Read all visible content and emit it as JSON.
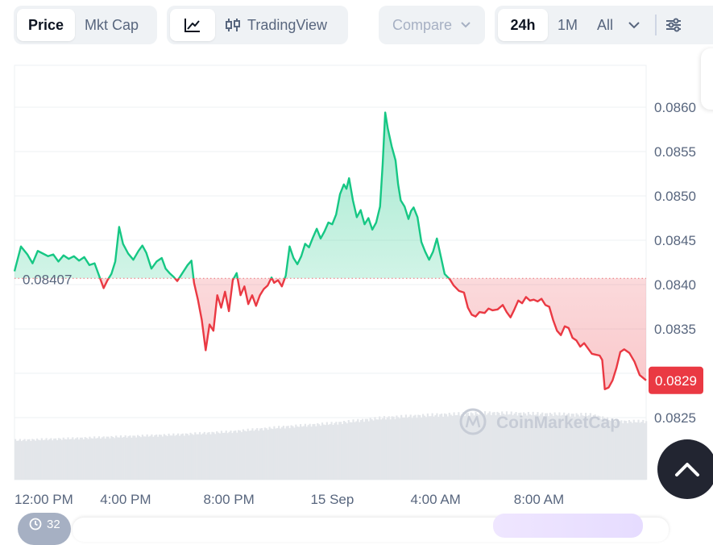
{
  "toolbar": {
    "price_label": "Price",
    "mktcap_label": "Mkt Cap",
    "tradingview_label": "TradingView",
    "compare_label": "Compare",
    "range_24h": "24h",
    "range_1m": "1M",
    "range_all": "All"
  },
  "bottom": {
    "counter_label": "32"
  },
  "colors": {
    "up": "#16c784",
    "down": "#ea3943",
    "up_fill": "#16c784",
    "down_fill": "#ea3943",
    "grid": "#eef0f3",
    "text": "#58667e"
  },
  "chart_data": {
    "type": "area",
    "baseline": 0.08407,
    "baseline_label": "0.08407",
    "current_label": "0.0829",
    "ylim": [
      0.082,
      0.0865
    ],
    "yticks": [
      0.0825,
      0.083,
      0.0835,
      0.084,
      0.0845,
      0.085,
      0.0855,
      0.086
    ],
    "ytick_labels": [
      "0.0825",
      "0.0830",
      "0.0835",
      "0.0840",
      "0.0845",
      "0.0850",
      "0.0855",
      "0.0860"
    ],
    "y_axis_unit": "USD",
    "xlim": [
      -0.3,
      24.15
    ],
    "xticks": [
      0,
      4,
      8,
      12,
      16,
      20
    ],
    "xtick_labels": [
      "12:00 PM",
      "4:00 PM",
      "8:00 PM",
      "15 Sep",
      "4:00 AM",
      "8:00 AM"
    ],
    "x_unit": "hours from 12:00 PM, 14 Sep",
    "price": [
      [
        -0.3,
        0.08415
      ],
      [
        -0.05,
        0.08443
      ],
      [
        0.2,
        0.08434
      ],
      [
        0.4,
        0.08424
      ],
      [
        0.6,
        0.08438
      ],
      [
        0.8,
        0.08435
      ],
      [
        1.0,
        0.08432
      ],
      [
        1.2,
        0.08434
      ],
      [
        1.4,
        0.08426
      ],
      [
        1.6,
        0.08433
      ],
      [
        1.8,
        0.08429
      ],
      [
        2.0,
        0.08432
      ],
      [
        2.2,
        0.08427
      ],
      [
        2.4,
        0.08431
      ],
      [
        2.6,
        0.08422
      ],
      [
        2.8,
        0.08424
      ],
      [
        3.0,
        0.08408
      ],
      [
        3.15,
        0.08396
      ],
      [
        3.3,
        0.08405
      ],
      [
        3.45,
        0.08412
      ],
      [
        3.6,
        0.08426
      ],
      [
        3.75,
        0.08465
      ],
      [
        3.9,
        0.08446
      ],
      [
        4.1,
        0.08435
      ],
      [
        4.3,
        0.08428
      ],
      [
        4.5,
        0.08438
      ],
      [
        4.65,
        0.08444
      ],
      [
        4.8,
        0.08436
      ],
      [
        5.0,
        0.08418
      ],
      [
        5.2,
        0.08426
      ],
      [
        5.4,
        0.0843
      ],
      [
        5.55,
        0.08418
      ],
      [
        5.7,
        0.08413
      ],
      [
        5.85,
        0.08409
      ],
      [
        6.0,
        0.08404
      ],
      [
        6.2,
        0.08413
      ],
      [
        6.4,
        0.08422
      ],
      [
        6.55,
        0.08427
      ],
      [
        6.65,
        0.08402
      ],
      [
        6.8,
        0.08383
      ],
      [
        6.95,
        0.0836
      ],
      [
        7.1,
        0.08326
      ],
      [
        7.25,
        0.08355
      ],
      [
        7.4,
        0.08348
      ],
      [
        7.55,
        0.08388
      ],
      [
        7.7,
        0.08374
      ],
      [
        7.85,
        0.08392
      ],
      [
        8.0,
        0.0837
      ],
      [
        8.15,
        0.08405
      ],
      [
        8.3,
        0.08413
      ],
      [
        8.45,
        0.08388
      ],
      [
        8.6,
        0.08398
      ],
      [
        8.75,
        0.08378
      ],
      [
        8.9,
        0.08388
      ],
      [
        9.05,
        0.08376
      ],
      [
        9.2,
        0.08388
      ],
      [
        9.35,
        0.08395
      ],
      [
        9.5,
        0.08399
      ],
      [
        9.65,
        0.08408
      ],
      [
        9.75,
        0.08402
      ],
      [
        9.9,
        0.08405
      ],
      [
        10.05,
        0.08398
      ],
      [
        10.2,
        0.0841
      ],
      [
        10.35,
        0.08443
      ],
      [
        10.5,
        0.0843
      ],
      [
        10.65,
        0.08423
      ],
      [
        10.8,
        0.08432
      ],
      [
        10.95,
        0.08446
      ],
      [
        11.1,
        0.08442
      ],
      [
        11.25,
        0.08453
      ],
      [
        11.4,
        0.08463
      ],
      [
        11.55,
        0.08452
      ],
      [
        11.7,
        0.0846
      ],
      [
        11.85,
        0.0847
      ],
      [
        12.0,
        0.08468
      ],
      [
        12.15,
        0.08479
      ],
      [
        12.3,
        0.08502
      ],
      [
        12.45,
        0.08513
      ],
      [
        12.55,
        0.08508
      ],
      [
        12.65,
        0.0852
      ],
      [
        12.8,
        0.08495
      ],
      [
        12.95,
        0.08476
      ],
      [
        13.1,
        0.08484
      ],
      [
        13.25,
        0.08468
      ],
      [
        13.4,
        0.08475
      ],
      [
        13.55,
        0.08462
      ],
      [
        13.7,
        0.0847
      ],
      [
        13.85,
        0.08488
      ],
      [
        13.95,
        0.08535
      ],
      [
        14.05,
        0.08594
      ],
      [
        14.15,
        0.08576
      ],
      [
        14.3,
        0.08556
      ],
      [
        14.45,
        0.0854
      ],
      [
        14.55,
        0.08513
      ],
      [
        14.65,
        0.08495
      ],
      [
        14.8,
        0.08488
      ],
      [
        14.95,
        0.08474
      ],
      [
        15.05,
        0.08483
      ],
      [
        15.15,
        0.08487
      ],
      [
        15.3,
        0.08476
      ],
      [
        15.45,
        0.08448
      ],
      [
        15.6,
        0.08437
      ],
      [
        15.75,
        0.08428
      ],
      [
        15.9,
        0.08437
      ],
      [
        16.05,
        0.08452
      ],
      [
        16.2,
        0.08432
      ],
      [
        16.35,
        0.08412
      ],
      [
        16.55,
        0.08406
      ],
      [
        16.7,
        0.08399
      ],
      [
        16.9,
        0.08393
      ],
      [
        17.1,
        0.08391
      ],
      [
        17.25,
        0.08374
      ],
      [
        17.4,
        0.08366
      ],
      [
        17.55,
        0.08364
      ],
      [
        17.7,
        0.08369
      ],
      [
        17.9,
        0.08368
      ],
      [
        18.05,
        0.08373
      ],
      [
        18.2,
        0.08371
      ],
      [
        18.4,
        0.08372
      ],
      [
        18.6,
        0.08377
      ],
      [
        18.75,
        0.08369
      ],
      [
        18.9,
        0.08363
      ],
      [
        19.05,
        0.08372
      ],
      [
        19.2,
        0.08382
      ],
      [
        19.35,
        0.08379
      ],
      [
        19.5,
        0.08386
      ],
      [
        19.65,
        0.08382
      ],
      [
        19.8,
        0.08383
      ],
      [
        19.95,
        0.08381
      ],
      [
        20.1,
        0.08384
      ],
      [
        20.25,
        0.08377
      ],
      [
        20.4,
        0.08375
      ],
      [
        20.55,
        0.0836
      ],
      [
        20.7,
        0.08348
      ],
      [
        20.85,
        0.08343
      ],
      [
        21.0,
        0.08353
      ],
      [
        21.15,
        0.08351
      ],
      [
        21.3,
        0.0834
      ],
      [
        21.45,
        0.08337
      ],
      [
        21.6,
        0.0833
      ],
      [
        21.75,
        0.08334
      ],
      [
        21.9,
        0.08328
      ],
      [
        22.05,
        0.08322
      ],
      [
        22.2,
        0.08321
      ],
      [
        22.35,
        0.0832
      ],
      [
        22.45,
        0.08315
      ],
      [
        22.55,
        0.08282
      ],
      [
        22.7,
        0.08284
      ],
      [
        22.85,
        0.08292
      ],
      [
        23.0,
        0.08306
      ],
      [
        23.15,
        0.08324
      ],
      [
        23.3,
        0.08327
      ],
      [
        23.5,
        0.08323
      ],
      [
        23.7,
        0.08313
      ],
      [
        23.9,
        0.08298
      ],
      [
        24.15,
        0.08292
      ]
    ],
    "volume": [
      [
        -0.3,
        0.42
      ],
      [
        2.0,
        0.44
      ],
      [
        4.0,
        0.46
      ],
      [
        6.0,
        0.48
      ],
      [
        8.0,
        0.51
      ],
      [
        10.0,
        0.56
      ],
      [
        12.0,
        0.6
      ],
      [
        14.0,
        0.66
      ],
      [
        16.0,
        0.69
      ],
      [
        18.0,
        0.71
      ],
      [
        20.0,
        0.7
      ],
      [
        22.0,
        0.69
      ],
      [
        23.0,
        0.62
      ],
      [
        24.15,
        0.62
      ]
    ],
    "watermark": "CoinMarketCap",
    "grid": true
  }
}
